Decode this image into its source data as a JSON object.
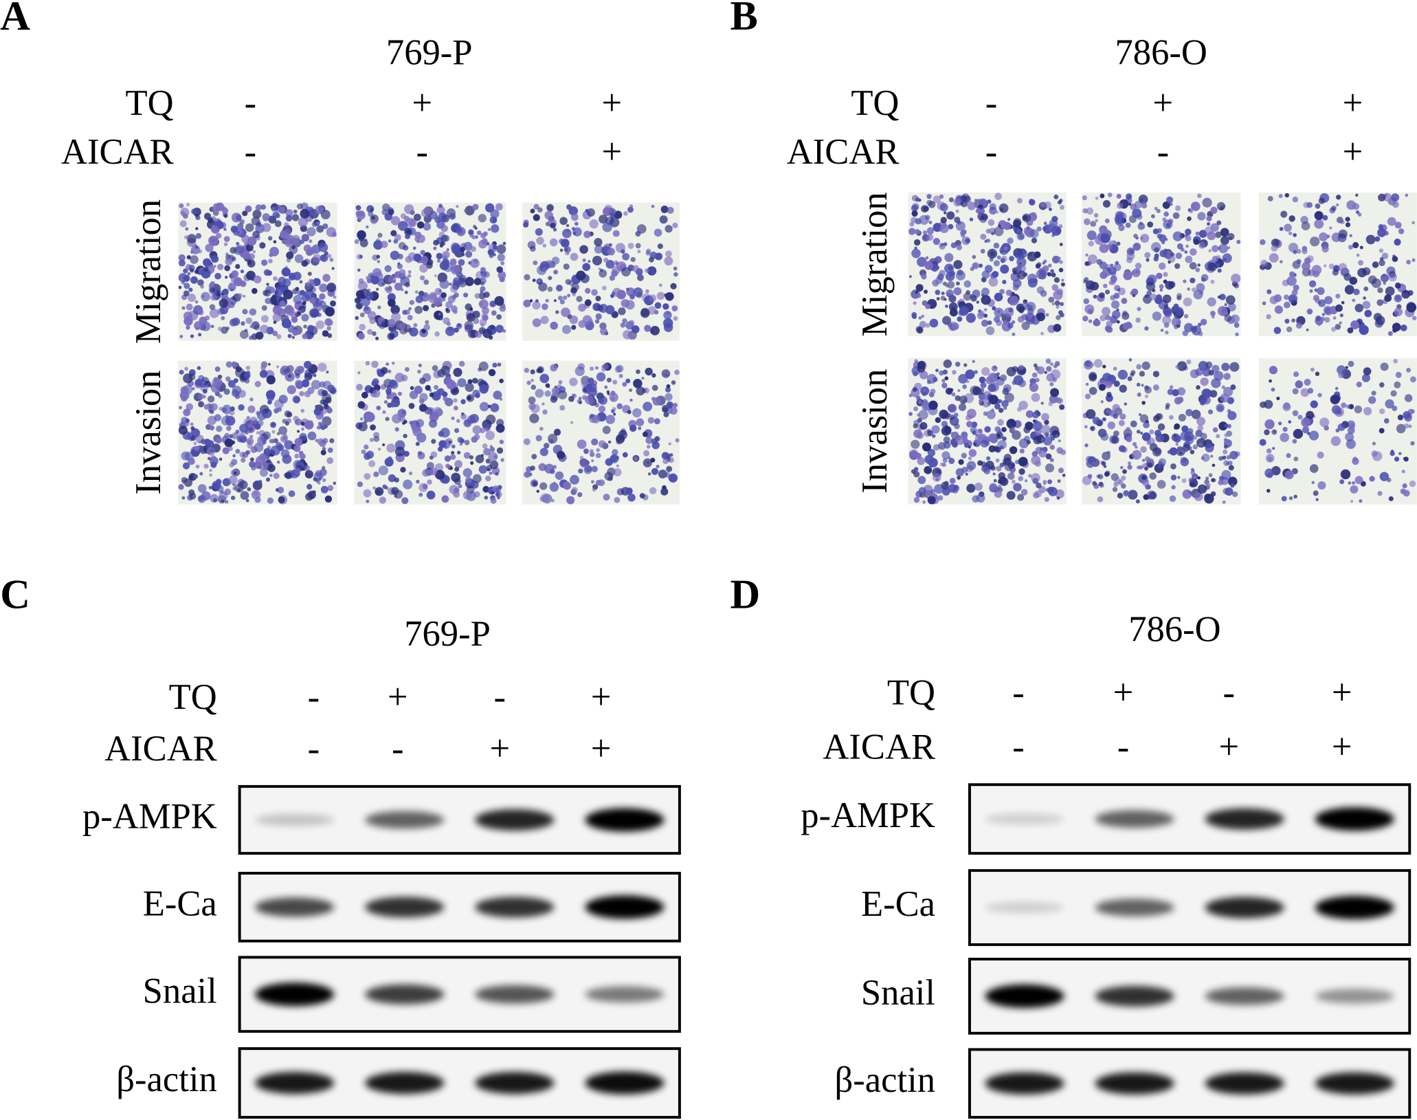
{
  "panels": [
    {
      "letter": "A",
      "title": "769-P",
      "conditions": [
        {
          "label": "TQ",
          "marks": [
            "-",
            "+",
            "+"
          ]
        },
        {
          "label": "AICAR",
          "marks": [
            "-",
            "-",
            "+"
          ]
        }
      ],
      "rows": [
        "Migration",
        "Invasion"
      ]
    },
    {
      "letter": "B",
      "title": "786-O",
      "conditions": [
        {
          "label": "TQ",
          "marks": [
            "-",
            "+",
            "+"
          ]
        },
        {
          "label": "AICAR",
          "marks": [
            "-",
            "-",
            "+"
          ]
        }
      ],
      "rows": [
        "Migration",
        "Invasion"
      ]
    },
    {
      "letter": "C",
      "title": "769-P",
      "conditions": [
        {
          "label": "TQ",
          "marks": [
            "-",
            "+",
            "-",
            "+"
          ]
        },
        {
          "label": "AICAR",
          "marks": [
            "-",
            "-",
            "+",
            "+"
          ]
        }
      ],
      "blots": [
        "p-AMPK",
        "E-Ca",
        "Snail",
        "β-actin"
      ]
    },
    {
      "letter": "D",
      "title": "786-O",
      "conditions": [
        {
          "label": "TQ",
          "marks": [
            "-",
            "+",
            "-",
            "+"
          ]
        },
        {
          "label": "AICAR",
          "marks": [
            "-",
            "-",
            "+",
            "+"
          ]
        }
      ],
      "blots": [
        "p-AMPK",
        "E-Ca",
        "Snail",
        "β-actin"
      ]
    }
  ]
}
